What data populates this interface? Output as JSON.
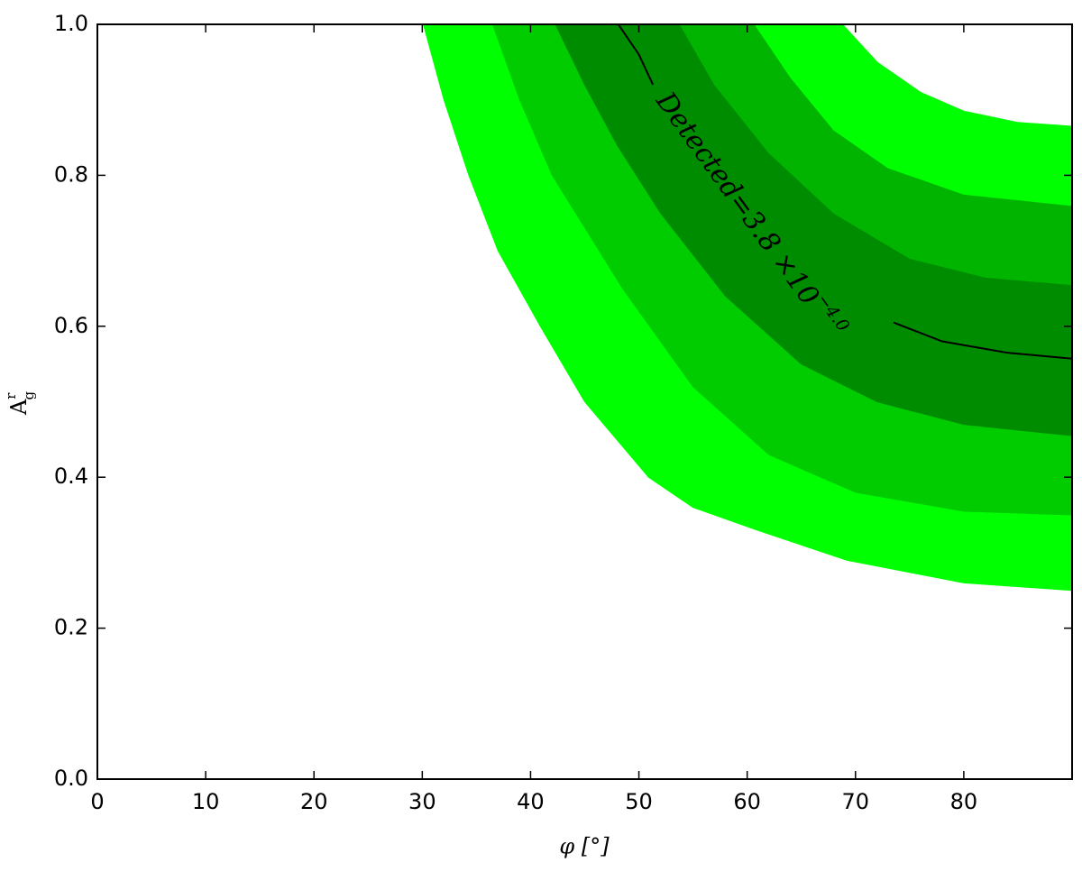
{
  "chart_data": {
    "type": "contourf",
    "xlabel": "φ [°]",
    "ylabel": {
      "text": "A",
      "superscript": "r",
      "subscript": "g"
    },
    "xlim": [
      0,
      90
    ],
    "xticks": [
      0,
      10,
      20,
      30,
      40,
      50,
      60,
      70,
      80
    ],
    "ylim": [
      0,
      1
    ],
    "yticks": [
      {
        "value": 0,
        "label": "0.0"
      },
      0.2,
      0.4,
      0.6,
      0.8,
      {
        "value": 1,
        "label": "1.0"
      }
    ],
    "boundaries": [
      {
        "x": [
          30.1,
          32,
          34.3,
          37,
          40.9,
          45,
          50.9,
          55,
          60.9,
          69.2,
          80,
          90
        ],
        "y": [
          1.0,
          0.9,
          0.8,
          0.7,
          0.6,
          0.5,
          0.4,
          0.36,
          0.33,
          0.29,
          0.26,
          0.25
        ]
      },
      {
        "x": [
          36.5,
          39,
          42,
          48.5,
          55,
          62,
          70,
          80,
          90
        ],
        "y": [
          1.0,
          0.9,
          0.8,
          0.65,
          0.52,
          0.43,
          0.38,
          0.355,
          0.35
        ]
      },
      {
        "x": [
          42.3,
          45,
          48,
          52,
          58,
          65,
          72,
          80,
          90
        ],
        "y": [
          1.0,
          0.92,
          0.84,
          0.75,
          0.64,
          0.55,
          0.5,
          0.47,
          0.455
        ]
      },
      {
        "x": [
          53.8,
          57,
          62,
          68,
          75,
          82,
          90
        ],
        "y": [
          1.0,
          0.92,
          0.83,
          0.75,
          0.69,
          0.665,
          0.655
        ]
      },
      {
        "x": [
          60.7,
          64,
          68,
          73,
          80,
          90
        ],
        "y": [
          1.0,
          0.93,
          0.86,
          0.81,
          0.775,
          0.76
        ]
      },
      {
        "x": [
          68.8,
          72,
          76,
          80,
          85,
          90
        ],
        "y": [
          1.0,
          0.95,
          0.91,
          0.885,
          0.87,
          0.865
        ]
      }
    ],
    "band_colors": [
      "#00ff00",
      "#00cc00",
      "#008c00",
      "#00b400",
      "#00ff00"
    ],
    "contour_line": {
      "x": [
        48.1,
        50,
        51.3,
        null,
        73.5,
        78,
        84,
        90
      ],
      "y": [
        1.0,
        0.96,
        0.92,
        null,
        0.605,
        0.58,
        0.565,
        0.557
      ],
      "color": "#000000"
    },
    "contour_label": {
      "text": "Detected=3.8 ×10",
      "superscript": "−4.0"
    }
  }
}
